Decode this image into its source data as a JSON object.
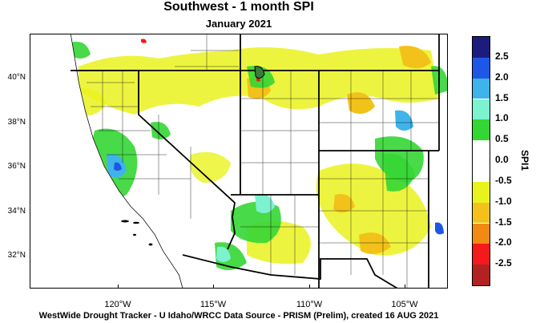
{
  "title": "Southwest - 1 month SPI",
  "subtitle": "January 2021",
  "footer": "WestWide Drought Tracker - U Idaho/WRCC  Data Source - PRISM (Prelim), created 16 AUG 2021",
  "map": {
    "lat_labels": [
      "40°N",
      "38°N",
      "36°N",
      "34°N",
      "32°N"
    ],
    "lon_labels": [
      "120°W",
      "115°W",
      "110°W",
      "105°W"
    ]
  },
  "legend": {
    "title": "SPI1",
    "labels": [
      "2.5",
      "2.0",
      "1.5",
      "1.0",
      "0.5",
      "0.0",
      "-0.5",
      "-1.0",
      "-1.5",
      "-2.0",
      "-2.5"
    ],
    "colors": [
      "#1c1c7e",
      "#1e57e6",
      "#3eb4ea",
      "#7cf2cf",
      "#34d634",
      "#ffffff",
      "#ffffff",
      "#eaf21e",
      "#f2c21a",
      "#f08a12",
      "#f21a1a",
      "#b22222"
    ]
  }
}
